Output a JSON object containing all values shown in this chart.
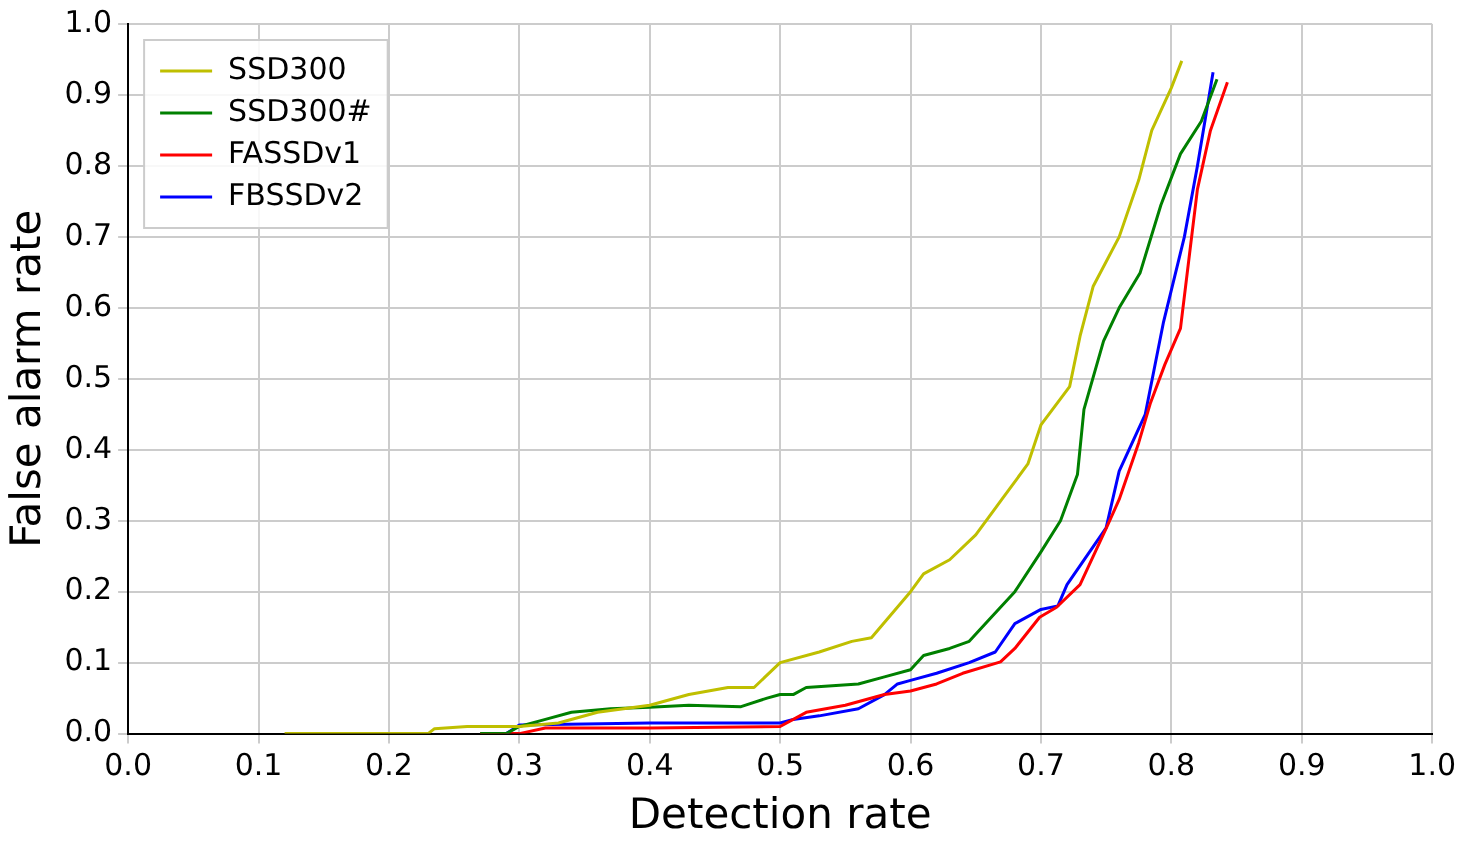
{
  "chart_data": {
    "type": "line",
    "xlabel": "Detection rate",
    "ylabel": "False alarm rate",
    "xlim": [
      0,
      1
    ],
    "ylim": [
      0,
      1
    ],
    "xticks": [
      {
        "value": 0,
        "label": "0.0"
      },
      0.1,
      0.2,
      0.3,
      0.4,
      0.5,
      0.6,
      0.7,
      0.8,
      0.9,
      {
        "value": 1,
        "label": "1.0"
      }
    ],
    "yticks": [
      {
        "value": 0,
        "label": "0.0"
      },
      0.1,
      0.2,
      0.3,
      0.4,
      0.5,
      0.6,
      0.7,
      0.8,
      0.9,
      {
        "value": 1,
        "label": "1.0"
      }
    ],
    "grid": true,
    "legend": "top left",
    "marker": "none",
    "line_style": "solid",
    "series": [
      {
        "name": "SSD300",
        "color": "#bfbf00",
        "x": [
          0.12,
          0.23,
          0.235,
          0.26,
          0.3,
          0.33,
          0.36,
          0.4,
          0.43,
          0.46,
          0.48,
          0.5,
          0.53,
          0.555,
          0.57,
          0.6,
          0.61,
          0.63,
          0.65,
          0.67,
          0.69,
          0.7,
          0.722,
          0.73,
          0.74,
          0.76,
          0.775,
          0.785,
          0.8,
          0.808
        ],
        "values": [
          0,
          0,
          0.007,
          0.01,
          0.01,
          0.015,
          0.03,
          0.04,
          0.055,
          0.065,
          0.065,
          0.1,
          0.115,
          0.13,
          0.135,
          0.2,
          0.225,
          0.245,
          0.28,
          0.33,
          0.38,
          0.435,
          0.489,
          0.56,
          0.63,
          0.7,
          0.78,
          0.85,
          0.91,
          0.948
        ]
      },
      {
        "name": "SSD300#",
        "color": "#008000",
        "x": [
          0.27,
          0.29,
          0.3,
          0.32,
          0.34,
          0.37,
          0.4,
          0.43,
          0.47,
          0.49,
          0.5,
          0.51,
          0.52,
          0.56,
          0.58,
          0.6,
          0.61,
          0.63,
          0.645,
          0.66,
          0.68,
          0.7,
          0.715,
          0.728,
          0.733,
          0.748,
          0.76,
          0.776,
          0.792,
          0.807,
          0.823,
          0.835
        ],
        "values": [
          0,
          0,
          0.01,
          0.02,
          0.03,
          0.035,
          0.037,
          0.04,
          0.038,
          0.05,
          0.055,
          0.055,
          0.065,
          0.07,
          0.08,
          0.09,
          0.11,
          0.12,
          0.13,
          0.16,
          0.2,
          0.256,
          0.3,
          0.365,
          0.457,
          0.553,
          0.6,
          0.649,
          0.745,
          0.817,
          0.863,
          0.922
        ]
      },
      {
        "name": "FASSDv1",
        "color": "#ff0000",
        "x": [
          0.27,
          0.3,
          0.32,
          0.4,
          0.5,
          0.52,
          0.55,
          0.58,
          0.6,
          0.62,
          0.64,
          0.669,
          0.68,
          0.699,
          0.712,
          0.73,
          0.751,
          0.76,
          0.775,
          0.784,
          0.795,
          0.807,
          0.82,
          0.83,
          0.843
        ],
        "values": [
          0,
          0,
          0.008,
          0.008,
          0.01,
          0.03,
          0.04,
          0.055,
          0.06,
          0.07,
          0.085,
          0.101,
          0.12,
          0.164,
          0.178,
          0.21,
          0.293,
          0.33,
          0.41,
          0.466,
          0.52,
          0.571,
          0.767,
          0.85,
          0.918
        ]
      },
      {
        "name": "FBSSDv2",
        "color": "#0000ff",
        "x": [
          0.29,
          0.3,
          0.4,
          0.5,
          0.51,
          0.53,
          0.56,
          0.58,
          0.59,
          0.6,
          0.62,
          0.645,
          0.665,
          0.68,
          0.7,
          0.713,
          0.72,
          0.75,
          0.76,
          0.78,
          0.794,
          0.81,
          0.82,
          0.832
        ],
        "values": [
          0,
          0.012,
          0.015,
          0.015,
          0.02,
          0.025,
          0.035,
          0.055,
          0.07,
          0.075,
          0.085,
          0.1,
          0.115,
          0.155,
          0.175,
          0.18,
          0.21,
          0.29,
          0.37,
          0.45,
          0.58,
          0.7,
          0.8,
          0.932
        ]
      }
    ]
  }
}
